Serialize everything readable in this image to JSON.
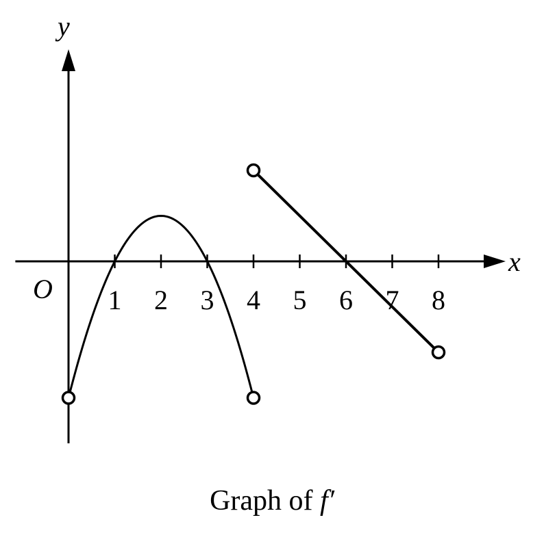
{
  "chart_data": {
    "type": "line",
    "title": "",
    "caption_text": "Graph of ",
    "caption_func": "f′",
    "xlabel": "x",
    "ylabel": "y",
    "origin_label": "O",
    "xlim": [
      -1.15,
      9.7
    ],
    "ylim": [
      -4.0,
      5.2
    ],
    "x_ticks": [
      1,
      2,
      3,
      4,
      5,
      6,
      7,
      8
    ],
    "x_tick_labels": [
      "1",
      "2",
      "3",
      "4",
      "5",
      "6",
      "7",
      "8"
    ],
    "grid": false,
    "series": [
      {
        "kind": "parabola",
        "x_range": [
          0,
          4
        ],
        "vertex": [
          2,
          1
        ],
        "through": [
          [
            1,
            0
          ],
          [
            3,
            0
          ],
          [
            0,
            -3
          ],
          [
            4,
            -3
          ]
        ],
        "endpoints": [
          {
            "x": 0,
            "y": -3,
            "open": true
          },
          {
            "x": 4,
            "y": -3,
            "open": true
          }
        ]
      },
      {
        "kind": "segment",
        "points": [
          [
            4,
            2
          ],
          [
            8,
            -2
          ]
        ],
        "endpoints": [
          {
            "x": 4,
            "y": 2,
            "open": true
          },
          {
            "x": 8,
            "y": -2,
            "open": true
          }
        ]
      }
    ]
  }
}
